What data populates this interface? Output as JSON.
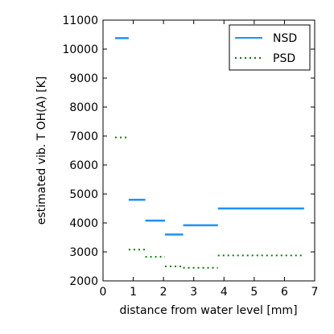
{
  "chart_data": {
    "type": "line",
    "xlabel": "distance from water level [mm]",
    "ylabel": "estimated vib. T OH(A) [K]",
    "xlim": [
      0,
      7
    ],
    "ylim": [
      2000,
      11000
    ],
    "x_ticks": [
      0,
      1,
      2,
      3,
      4,
      5,
      6,
      7
    ],
    "y_ticks": [
      2000,
      3000,
      4000,
      5000,
      6000,
      7000,
      8000,
      9000,
      10000,
      11000
    ],
    "grid": false,
    "legend_position": "top-right",
    "series": [
      {
        "name": "NSD",
        "color": "#1e90ff",
        "style": "solid",
        "segments": [
          {
            "x": [
              0.4,
              0.85
            ],
            "y": 10380
          },
          {
            "x": [
              0.85,
              1.4
            ],
            "y": 4800
          },
          {
            "x": [
              1.4,
              2.05
            ],
            "y": 4080
          },
          {
            "x": [
              2.05,
              2.65
            ],
            "y": 3600
          },
          {
            "x": [
              2.65,
              3.8
            ],
            "y": 3920
          },
          {
            "x": [
              3.8,
              6.65
            ],
            "y": 4500
          }
        ]
      },
      {
        "name": "PSD",
        "color": "#008000",
        "style": "dotted",
        "segments": [
          {
            "x": [
              0.4,
              0.85
            ],
            "y": 6950
          },
          {
            "x": [
              0.85,
              1.4
            ],
            "y": 3080
          },
          {
            "x": [
              1.4,
              2.05
            ],
            "y": 2830
          },
          {
            "x": [
              2.05,
              2.65
            ],
            "y": 2500
          },
          {
            "x": [
              2.65,
              3.8
            ],
            "y": 2450
          },
          {
            "x": [
              3.8,
              6.65
            ],
            "y": 2880
          }
        ]
      }
    ]
  }
}
